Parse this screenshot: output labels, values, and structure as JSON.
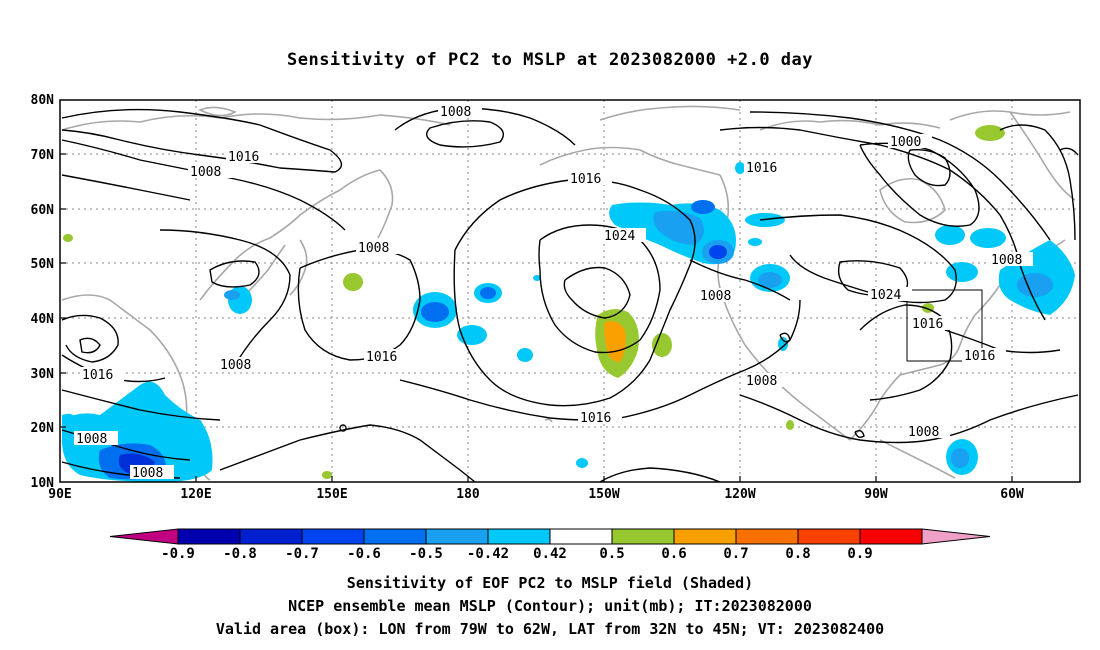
{
  "title": "Sensitivity of PC2 to MSLP at 2023082000 +2.0 day",
  "lat_labels": [
    "80N",
    "70N",
    "60N",
    "50N",
    "40N",
    "30N",
    "20N",
    "10N"
  ],
  "lon_labels": [
    "90E",
    "120E",
    "150E",
    "180",
    "150W",
    "120W",
    "90W",
    "60W"
  ],
  "colorbar": {
    "labels": [
      "-0.9",
      "-0.8",
      "-0.7",
      "-0.6",
      "-0.5",
      "-0.42",
      "0.42",
      "0.5",
      "0.6",
      "0.7",
      "0.8",
      "0.9"
    ],
    "colors": [
      "#c00080",
      "#0000b0",
      "#0020d0",
      "#0044f0",
      "#0070f0",
      "#1aa0f0",
      "#00c8f8",
      "#ffffff",
      "#98c830",
      "#f8a000",
      "#f87000",
      "#f84000",
      "#f80000",
      "#f0a0c8"
    ]
  },
  "contour_labels": [
    "1008",
    "1016",
    "1008",
    "1016",
    "1008",
    "1024",
    "1016",
    "1000",
    "1016",
    "1008",
    "1008",
    "1016",
    "1016",
    "1008",
    "1008",
    "1024",
    "1016",
    "1016",
    "1008",
    "1008",
    "1008"
  ],
  "captions": {
    "line1": "Sensitivity of EOF PC2 to MSLP field (Shaded)",
    "line2": "NCEP ensemble mean MSLP (Contour); unit(mb); IT:2023082000",
    "line3": "Valid area (box): LON from 79W to 62W, LAT from 32N to 45N; VT: 2023082400"
  }
}
